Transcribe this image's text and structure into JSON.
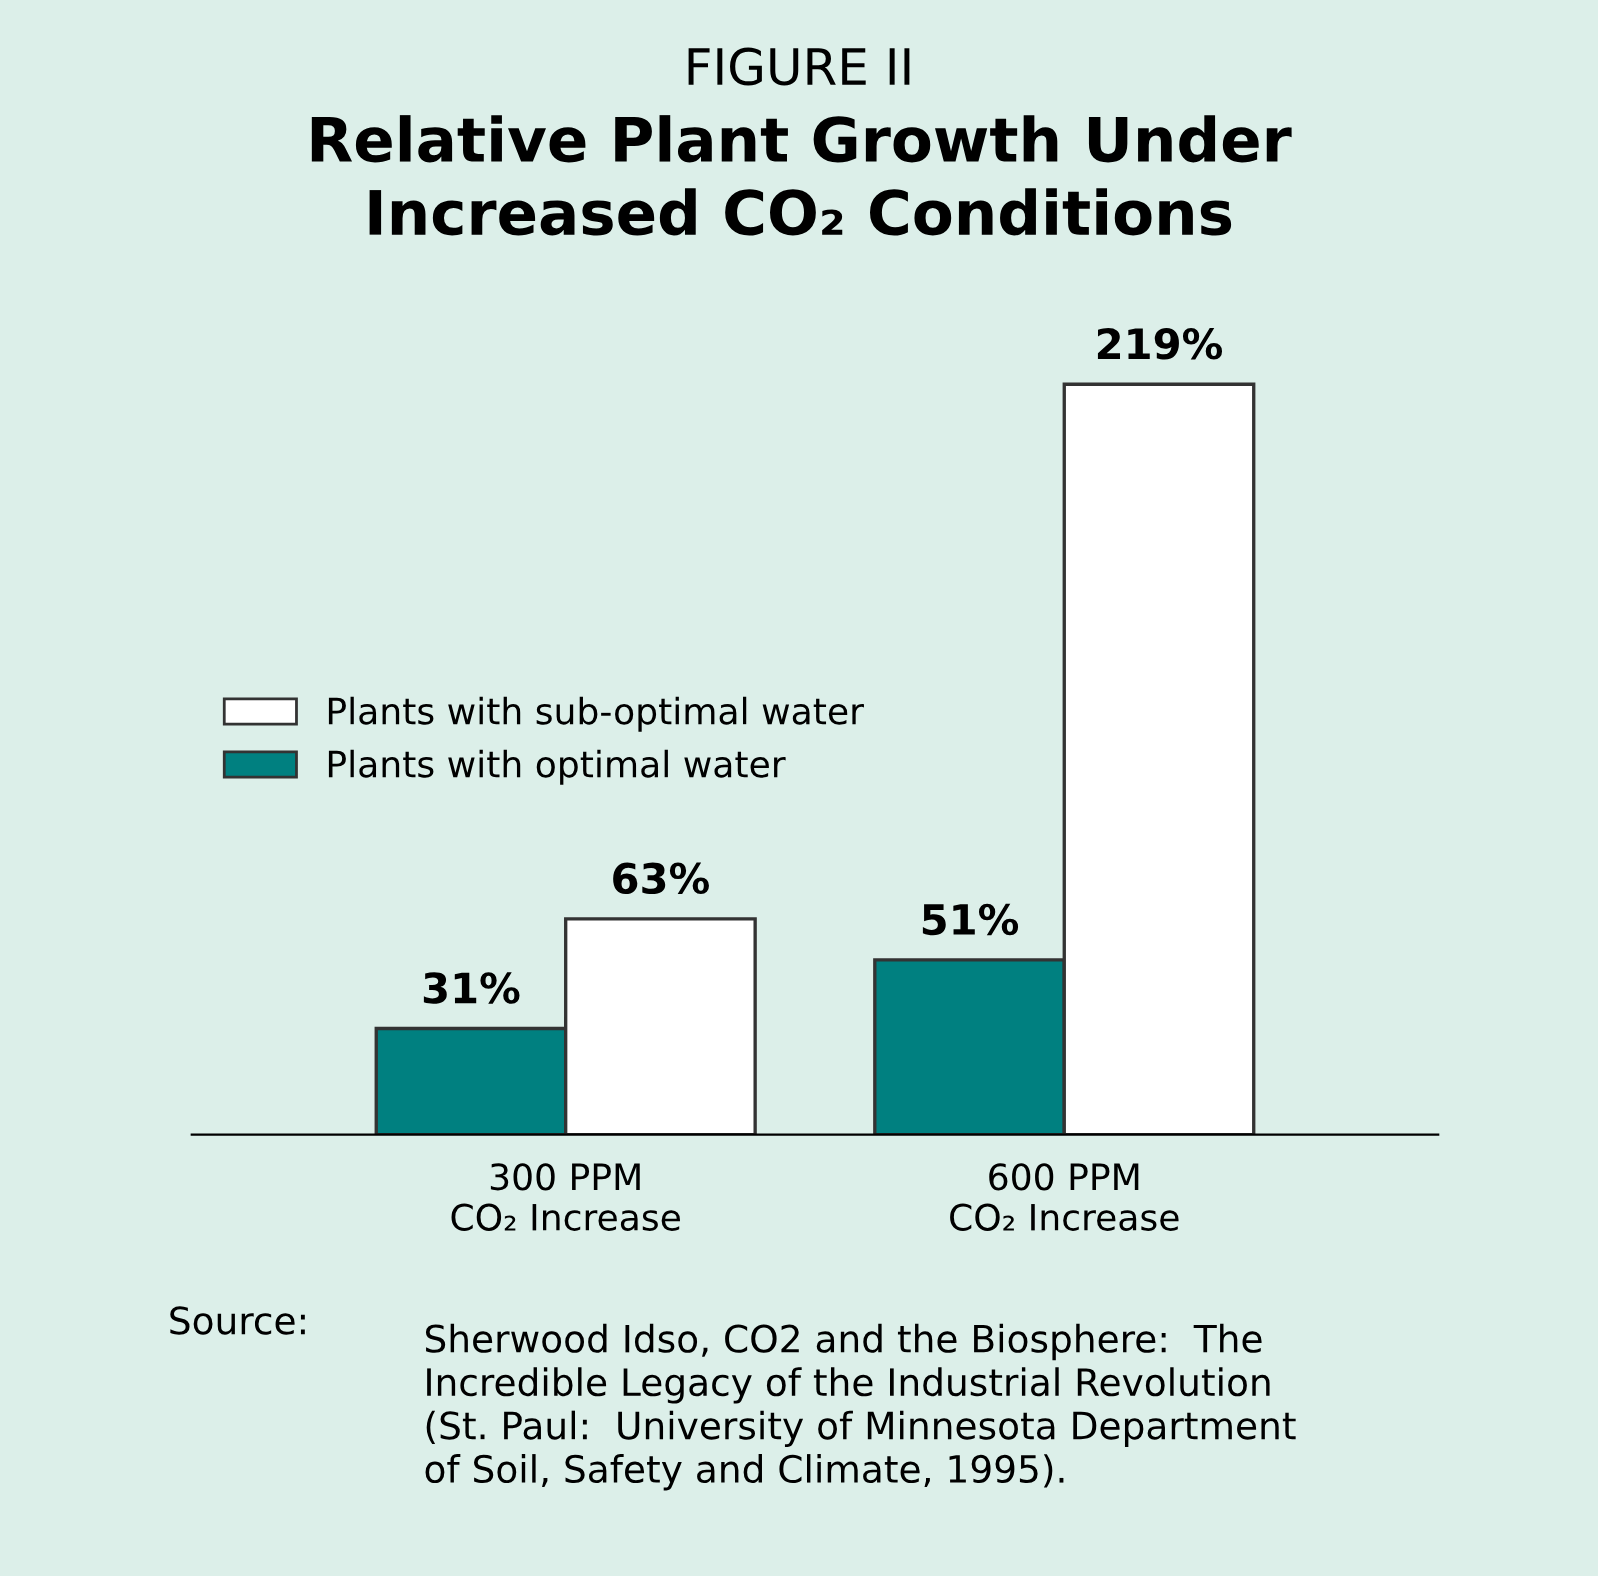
{
  "chart_data": {
    "type": "bar",
    "subtitle": "FIGURE II",
    "title": "Relative Plant Growth Under\nIncreased CO₂ Conditions",
    "categories": [
      "300 PPM\nCO₂ Increase",
      "600 PPM\nCO₂ Increase"
    ],
    "series": [
      {
        "name": "Plants with optimal water",
        "color": "#008080",
        "values": [
          31,
          51
        ],
        "value_labels": [
          "31%",
          "51%"
        ]
      },
      {
        "name": "Plants with sub-optimal water",
        "color": "#ffffff",
        "values": [
          63,
          219
        ],
        "value_labels": [
          "63%",
          "219%"
        ]
      }
    ],
    "legend": "left",
    "grid": false,
    "annotations": [
      "Source:",
      "Sherwood Idso, CO2 and the Biosphere:  The\nIncredible Legacy of the Industrial Revolution\n(St. Paul:  University of Minnesota Department\nof Soil, Safety and Climate, 1995)."
    ]
  }
}
